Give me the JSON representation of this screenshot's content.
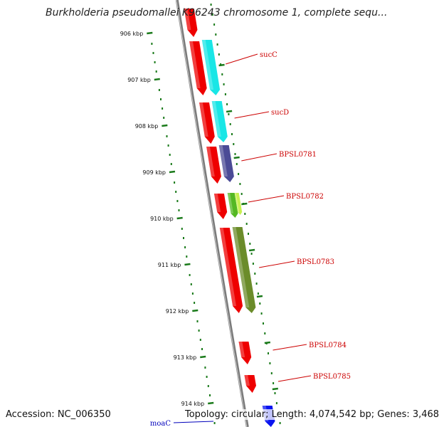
{
  "title": "Burkholderia pseudomallei K96243 chromosome 1, complete sequ...",
  "footer": {
    "accession": "Accession: NC_006350",
    "topology": "Topology: circular; Length: 4,074,542 bp; Genes: 3,468"
  },
  "colors": {
    "backbone": "#7a7a7a",
    "tick": "#1a7a1a",
    "cds": "#ee0000",
    "sucC": "#19e6e6",
    "sucD": "#19e6e6",
    "BPSL0781": "#4b4b96",
    "BPSL0782": "#55b823",
    "BPSL0783": "#6b8c2a",
    "moaC": "#0a14f0",
    "label_red": "#cc0000",
    "label_blue": "#0000bb"
  },
  "ticks": [
    {
      "kbp": 906,
      "label": "906 kbp"
    },
    {
      "kbp": 907,
      "label": "907 kbp"
    },
    {
      "kbp": 908,
      "label": "908 kbp"
    },
    {
      "kbp": 909,
      "label": "909 kbp"
    },
    {
      "kbp": 910,
      "label": "910 kbp"
    },
    {
      "kbp": 911,
      "label": "911 kbp"
    },
    {
      "kbp": 912,
      "label": "912 kbp"
    },
    {
      "kbp": 913,
      "label": "913 kbp"
    },
    {
      "kbp": 914,
      "label": "914 kbp"
    }
  ],
  "genes": [
    {
      "name": "sucC",
      "label": "sucC",
      "color_key": "sucC"
    },
    {
      "name": "sucD",
      "label": "sucD",
      "color_key": "sucD"
    },
    {
      "name": "BPSL0781",
      "label": "BPSL0781",
      "color_key": "BPSL0781"
    },
    {
      "name": "BPSL0782",
      "label": "BPSL0782",
      "color_key": "BPSL0782"
    },
    {
      "name": "BPSL0783",
      "label": "BPSL0783",
      "color_key": "BPSL0783"
    },
    {
      "name": "BPSL0784",
      "label": "BPSL0784",
      "color_key": "cds"
    },
    {
      "name": "BPSL0785",
      "label": "BPSL0785",
      "color_key": "cds"
    },
    {
      "name": "moaC",
      "label": "moaC",
      "color_key": "moaC"
    }
  ]
}
